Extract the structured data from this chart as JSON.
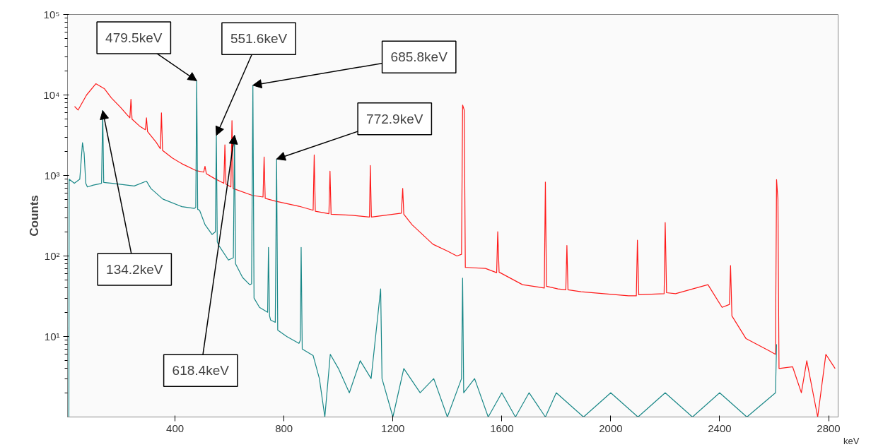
{
  "chart_data": {
    "type": "line",
    "xlabel": "keV",
    "ylabel": "Counts",
    "log": "y",
    "grid": false,
    "xlim": [
      5,
      2835
    ],
    "xticks": [
      400,
      800,
      1200,
      1600,
      2000,
      2400,
      2800
    ],
    "ylim": [
      1,
      100000
    ],
    "yticks": [
      {
        "value": 10,
        "label": "10¹"
      },
      {
        "value": 100,
        "label": "10²"
      },
      {
        "value": 1000,
        "label": "10³"
      },
      {
        "value": 10000,
        "label": "10⁴"
      },
      {
        "value": 100000,
        "label": "10⁵"
      }
    ],
    "series": [
      {
        "color": "#ff0000",
        "x": [
          31,
          44,
          75,
          109,
          140,
          166,
          200,
          225,
          234,
          238,
          242,
          270,
          291,
          295,
          299,
          330,
          346,
          350,
          354,
          390,
          425,
          477,
          505,
          510,
          515,
          544,
          579,
          583,
          587,
          605,
          609,
          613,
          684,
          723,
          727,
          731,
          769,
          855,
          907,
          911,
          915,
          965,
          969,
          973,
          1050,
          1114,
          1117,
          1121,
          1231,
          1236,
          1240,
          1270,
          1347,
          1400,
          1435,
          1452,
          1456,
          1462,
          1466,
          1474,
          1540,
          1581,
          1585,
          1590,
          1676,
          1756,
          1760,
          1764,
          1806,
          1835,
          1839,
          1843,
          1891,
          2065,
          2094,
          2098,
          2103,
          2196,
          2200,
          2205,
          2238,
          2357,
          2409,
          2436,
          2440,
          2445,
          2497,
          2583,
          2605,
          2609,
          2614,
          2618,
          2668,
          2700,
          2720,
          2760,
          2790,
          2824
        ],
        "values": [
          7200,
          6500,
          10000,
          13800,
          12000,
          9200,
          7000,
          5600,
          5200,
          8850,
          5000,
          4100,
          3700,
          5200,
          3500,
          2600,
          2150,
          6000,
          2050,
          1650,
          1400,
          1150,
          1100,
          1300,
          1050,
          920,
          800,
          2400,
          780,
          720,
          4800,
          690,
          565,
          540,
          1700,
          520,
          480,
          415,
          370,
          1800,
          360,
          335,
          1130,
          330,
          320,
          305,
          1330,
          305,
          340,
          690,
          330,
          245,
          140,
          115,
          100,
          105,
          7500,
          6500,
          72,
          72,
          70,
          62,
          200,
          63,
          44,
          40,
          830,
          42,
          39,
          38,
          135,
          38,
          36,
          32,
          32,
          157,
          33,
          34,
          260,
          35,
          34,
          44,
          23,
          25,
          76,
          18,
          9.4,
          6.6,
          6,
          890,
          500,
          4,
          4.2,
          2,
          5,
          1,
          6,
          4
        ]
      },
      {
        "color": "#007b7b",
        "x": [
          10,
          11,
          30,
          50,
          60,
          66,
          72,
          78,
          100,
          125,
          130,
          134.2,
          138,
          170,
          207,
          250,
          295,
          311,
          355,
          425,
          471,
          476,
          479.5,
          483,
          490,
          510,
          536,
          548,
          551.6,
          555,
          562,
          596,
          614,
          618.4,
          622,
          648,
          674,
          681,
          685.8,
          690,
          710,
          740,
          743,
          747,
          751,
          768,
          772.9,
          777,
          810,
          855,
          860,
          863,
          867,
          907,
          930,
          950,
          970,
          1000,
          1040,
          1080,
          1120,
          1155,
          1160,
          1200,
          1240,
          1300,
          1350,
          1400,
          1452,
          1456,
          1460,
          1500,
          1550,
          1600,
          1650,
          1700,
          1760,
          1800,
          1900,
          2000,
          2100,
          2200,
          2300,
          2400,
          2500,
          2605,
          2609
        ],
        "values": [
          1,
          900,
          800,
          900,
          2550,
          1900,
          800,
          720,
          760,
          790,
          800,
          6400,
          820,
          800,
          770,
          740,
          850,
          690,
          510,
          410,
          390,
          400,
          15000,
          380,
          370,
          245,
          185,
          200,
          3150,
          150,
          133,
          89,
          95,
          3150,
          80,
          54,
          44,
          45,
          13200,
          30,
          23,
          20,
          128,
          18,
          16,
          15,
          1600,
          12,
          10,
          8.2,
          9,
          128,
          7,
          5.8,
          3,
          1,
          6,
          4,
          2,
          5,
          3,
          39,
          3,
          1,
          4,
          2,
          3,
          1,
          3,
          53,
          2,
          3,
          1,
          2,
          1,
          2,
          1,
          2,
          1,
          2,
          1,
          2,
          1,
          2,
          1,
          2,
          8
        ]
      }
    ],
    "annotations": [
      {
        "text": "479.5keV",
        "x": 479.5,
        "y": 15000
      },
      {
        "text": "551.6keV",
        "x": 551.6,
        "y": 3150
      },
      {
        "text": "685.8keV",
        "x": 685.8,
        "y": 13200
      },
      {
        "text": "772.9keV",
        "x": 772.9,
        "y": 1600
      },
      {
        "text": "134.2keV",
        "x": 134.2,
        "y": 6400
      },
      {
        "text": "618.4keV",
        "x": 618.4,
        "y": 3150
      }
    ]
  }
}
